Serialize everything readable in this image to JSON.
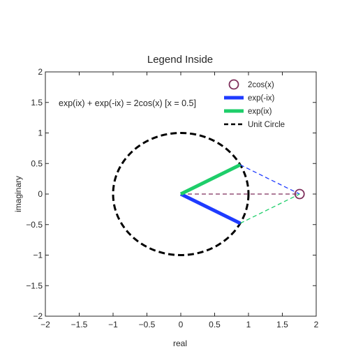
{
  "chart_data": {
    "type": "line",
    "title": "Legend Inside",
    "xlabel": "real",
    "ylabel": "imaginary",
    "xlim": [
      -2,
      2
    ],
    "ylim": [
      -2,
      2
    ],
    "xticks": [
      -2,
      -1.5,
      -1,
      -0.5,
      0,
      0.5,
      1,
      1.5,
      2
    ],
    "yticks": [
      -2,
      -1.5,
      -1,
      -0.5,
      0,
      0.5,
      1,
      1.5,
      2
    ],
    "xtick_labels": [
      "−2",
      "−1.5",
      "−1",
      "−0.5",
      "0",
      "0.5",
      "1",
      "1.5",
      "2"
    ],
    "ytick_labels": [
      "−2",
      "−1.5",
      "−1",
      "−0.5",
      "0",
      "0.5",
      "1",
      "1.5",
      "2"
    ],
    "grid": false,
    "legend_position": "top-right",
    "annotation": "exp(ix) + exp(-ix) = 2cos(x) [x = 0.5]",
    "series": [
      {
        "name": "2cos(x)",
        "kind": "marker",
        "x": [
          1.755
        ],
        "y": [
          0
        ],
        "color": "#7e2f5b"
      },
      {
        "name": "exp(-ix)",
        "kind": "line",
        "x": [
          0,
          0.878
        ],
        "y": [
          0,
          -0.479
        ],
        "color": "#1f3bff"
      },
      {
        "name": "exp(ix)",
        "kind": "line",
        "x": [
          0,
          0.878
        ],
        "y": [
          0,
          0.479
        ],
        "color": "#1ece6a"
      },
      {
        "name": "Unit Circle",
        "kind": "circle",
        "center": [
          0,
          0
        ],
        "radius": 1,
        "color": "#000000"
      }
    ],
    "helper_lines": [
      {
        "from": [
          0.878,
          0.479
        ],
        "to": [
          1.755,
          0
        ],
        "color": "#1f3bff"
      },
      {
        "from": [
          0.878,
          -0.479
        ],
        "to": [
          1.755,
          0
        ],
        "color": "#1ece6a"
      },
      {
        "from": [
          0,
          0
        ],
        "to": [
          1.755,
          0
        ],
        "color": "#7e2f5b"
      }
    ]
  }
}
